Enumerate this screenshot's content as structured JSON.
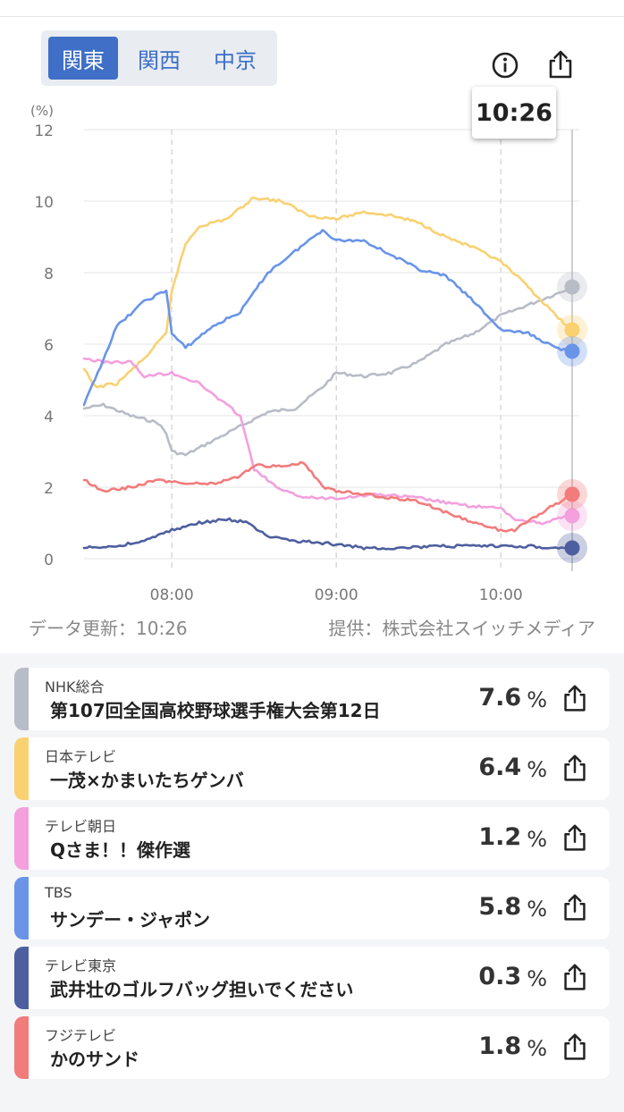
{
  "regions": {
    "items": [
      "関東",
      "関西",
      "中京"
    ],
    "active": 0
  },
  "tooltip": {
    "time": "10:26"
  },
  "footer": {
    "updated": "データ更新：10:26",
    "provider": "提供：株式会社スイッチメディア"
  },
  "icons": {
    "info": "info-icon",
    "share": "share-icon"
  },
  "chart_data": {
    "type": "line",
    "ylabel": "(%)",
    "ylim": [
      0,
      12
    ],
    "yticks": [
      0,
      2,
      4,
      6,
      8,
      10,
      12
    ],
    "xlim": [
      "07:28",
      "10:26"
    ],
    "xticks": [
      "08:00",
      "09:00",
      "10:00"
    ],
    "grid": true,
    "cursor": "10:26",
    "series": [
      {
        "name": "NHK総合",
        "color": "#b8bcc6",
        "points": [
          [
            "07:28",
            4.2
          ],
          [
            "07:35",
            4.3
          ],
          [
            "07:45",
            4.0
          ],
          [
            "07:55",
            3.8
          ],
          [
            "07:58",
            3.5
          ],
          [
            "08:00",
            3.0
          ],
          [
            "08:05",
            2.9
          ],
          [
            "08:15",
            3.3
          ],
          [
            "08:25",
            3.7
          ],
          [
            "08:35",
            4.1
          ],
          [
            "08:45",
            4.2
          ],
          [
            "08:55",
            4.8
          ],
          [
            "09:00",
            5.2
          ],
          [
            "09:10",
            5.1
          ],
          [
            "09:20",
            5.2
          ],
          [
            "09:30",
            5.5
          ],
          [
            "09:40",
            6.0
          ],
          [
            "09:50",
            6.3
          ],
          [
            "10:00",
            6.8
          ],
          [
            "10:10",
            7.1
          ],
          [
            "10:20",
            7.4
          ],
          [
            "10:26",
            7.6
          ]
        ]
      },
      {
        "name": "日本テレビ",
        "color": "#f9d171",
        "points": [
          [
            "07:28",
            5.3
          ],
          [
            "07:32",
            4.8
          ],
          [
            "07:40",
            4.9
          ],
          [
            "07:50",
            5.6
          ],
          [
            "07:58",
            6.3
          ],
          [
            "08:00",
            7.5
          ],
          [
            "08:05",
            8.8
          ],
          [
            "08:10",
            9.3
          ],
          [
            "08:20",
            9.5
          ],
          [
            "08:30",
            10.1
          ],
          [
            "08:40",
            10.0
          ],
          [
            "08:50",
            9.6
          ],
          [
            "09:00",
            9.5
          ],
          [
            "09:10",
            9.7
          ],
          [
            "09:20",
            9.6
          ],
          [
            "09:30",
            9.4
          ],
          [
            "09:40",
            9.0
          ],
          [
            "09:50",
            8.7
          ],
          [
            "10:00",
            8.3
          ],
          [
            "10:10",
            7.6
          ],
          [
            "10:20",
            6.8
          ],
          [
            "10:26",
            6.4
          ]
        ]
      },
      {
        "name": "テレビ朝日",
        "color": "#f3a0dd",
        "points": [
          [
            "07:28",
            5.6
          ],
          [
            "07:35",
            5.5
          ],
          [
            "07:45",
            5.5
          ],
          [
            "07:50",
            5.1
          ],
          [
            "08:00",
            5.2
          ],
          [
            "08:10",
            4.9
          ],
          [
            "08:20",
            4.3
          ],
          [
            "08:25",
            4.0
          ],
          [
            "08:30",
            2.5
          ],
          [
            "08:40",
            1.9
          ],
          [
            "08:50",
            1.7
          ],
          [
            "09:00",
            1.7
          ],
          [
            "09:15",
            1.8
          ],
          [
            "09:30",
            1.7
          ],
          [
            "09:45",
            1.5
          ],
          [
            "10:00",
            1.4
          ],
          [
            "10:05",
            1.1
          ],
          [
            "10:15",
            1.0
          ],
          [
            "10:20",
            1.1
          ],
          [
            "10:26",
            1.2
          ]
        ]
      },
      {
        "name": "TBS",
        "color": "#6994e8",
        "points": [
          [
            "07:28",
            4.3
          ],
          [
            "07:33",
            5.2
          ],
          [
            "07:40",
            6.5
          ],
          [
            "07:50",
            7.2
          ],
          [
            "07:58",
            7.5
          ],
          [
            "08:00",
            6.3
          ],
          [
            "08:05",
            5.9
          ],
          [
            "08:15",
            6.5
          ],
          [
            "08:25",
            6.9
          ],
          [
            "08:35",
            8.0
          ],
          [
            "08:45",
            8.6
          ],
          [
            "08:55",
            9.2
          ],
          [
            "09:00",
            8.9
          ],
          [
            "09:10",
            8.9
          ],
          [
            "09:20",
            8.5
          ],
          [
            "09:30",
            8.1
          ],
          [
            "09:40",
            7.9
          ],
          [
            "09:50",
            7.2
          ],
          [
            "10:00",
            6.4
          ],
          [
            "10:10",
            6.3
          ],
          [
            "10:20",
            5.9
          ],
          [
            "10:26",
            5.8
          ]
        ]
      },
      {
        "name": "テレビ東京",
        "color": "#4e5f9f",
        "points": [
          [
            "07:28",
            0.3
          ],
          [
            "07:40",
            0.35
          ],
          [
            "07:50",
            0.5
          ],
          [
            "08:00",
            0.8
          ],
          [
            "08:10",
            1.0
          ],
          [
            "08:20",
            1.1
          ],
          [
            "08:28",
            1.0
          ],
          [
            "08:35",
            0.6
          ],
          [
            "08:45",
            0.5
          ],
          [
            "09:00",
            0.4
          ],
          [
            "09:10",
            0.3
          ],
          [
            "09:20",
            0.3
          ],
          [
            "09:40",
            0.35
          ],
          [
            "10:00",
            0.35
          ],
          [
            "10:10",
            0.35
          ],
          [
            "10:20",
            0.3
          ],
          [
            "10:26",
            0.3
          ]
        ]
      },
      {
        "name": "フジテレビ",
        "color": "#f27b7b",
        "points": [
          [
            "07:28",
            2.2
          ],
          [
            "07:35",
            1.9
          ],
          [
            "07:45",
            2.0
          ],
          [
            "07:55",
            2.2
          ],
          [
            "08:05",
            2.1
          ],
          [
            "08:15",
            2.1
          ],
          [
            "08:25",
            2.3
          ],
          [
            "08:30",
            2.6
          ],
          [
            "08:40",
            2.6
          ],
          [
            "08:48",
            2.7
          ],
          [
            "08:55",
            2.0
          ],
          [
            "09:00",
            1.9
          ],
          [
            "09:10",
            1.8
          ],
          [
            "09:20",
            1.7
          ],
          [
            "09:30",
            1.6
          ],
          [
            "09:40",
            1.3
          ],
          [
            "09:50",
            1.0
          ],
          [
            "10:00",
            0.8
          ],
          [
            "10:05",
            0.8
          ],
          [
            "10:15",
            1.3
          ],
          [
            "10:26",
            1.8
          ]
        ]
      }
    ]
  },
  "stations": [
    {
      "station": "NHK総合",
      "program": "第107回全国高校野球選手権大会第12日",
      "rating": "7.6",
      "unit": "%",
      "color": "#b8bcc6"
    },
    {
      "station": "日本テレビ",
      "program": "一茂×かまいたちゲンバ",
      "rating": "6.4",
      "unit": "%",
      "color": "#f9d171"
    },
    {
      "station": "テレビ朝日",
      "program": "Qさま！！傑作選",
      "rating": "1.2",
      "unit": "%",
      "color": "#f3a0dd"
    },
    {
      "station": "TBS",
      "program": "サンデー・ジャポン",
      "rating": "5.8",
      "unit": "%",
      "color": "#6994e8"
    },
    {
      "station": "テレビ東京",
      "program": "武井壮のゴルフバッグ担いでください",
      "rating": "0.3",
      "unit": "%",
      "color": "#4e5f9f"
    },
    {
      "station": "フジテレビ",
      "program": "かのサンド",
      "rating": "1.8",
      "unit": "%",
      "color": "#f27b7b"
    }
  ]
}
